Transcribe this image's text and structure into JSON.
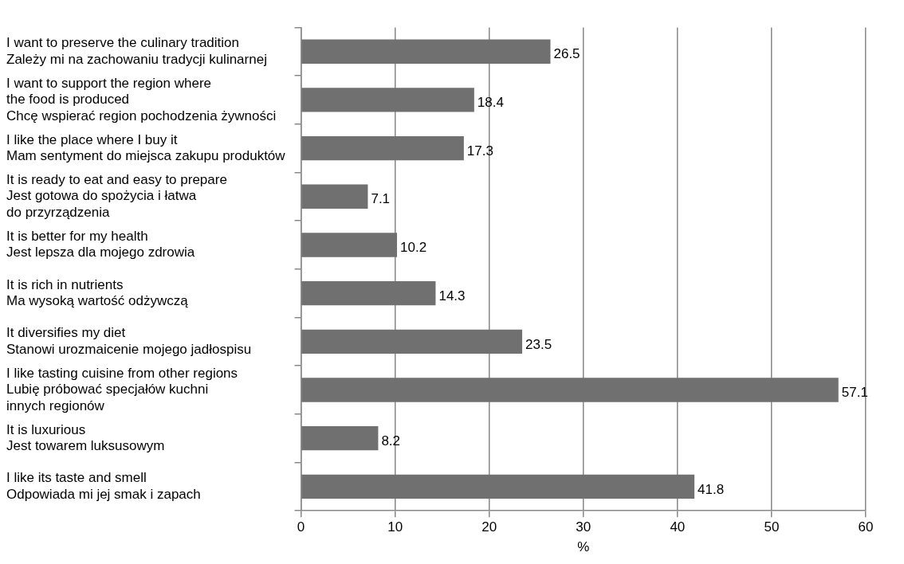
{
  "chart_data": {
    "type": "bar",
    "orientation": "horizontal",
    "xlabel": "%",
    "categories": [
      "I want to preserve the culinary tradition\nZależy mi na zachowaniu tradycji kulinarnej",
      "I want to support the region where\nthe food is produced\nChcę wspierać region pochodzenia żywności",
      "I like the place where I buy it\nMam sentyment do miejsca zakupu produktów",
      "It is ready to eat and easy to prepare\nJest gotowa do spożycia i łatwa\ndo przyrządzenia",
      "It is better for my health\nJest lepsza dla mojego zdrowia",
      "It is rich in nutrients\nMa wysoką wartość odżywczą",
      "It diversifies my diet\nStanowi urozmaicenie mojego jadłospisu",
      "I like tasting cuisine from other regions\nLubię próbować specjałów kuchni\ninnych regionów",
      "It is luxurious\nJest towarem luksusowym",
      "I like its taste and smell\nOdpowiada mi jej smak i zapach"
    ],
    "values": [
      26.5,
      18.4,
      17.3,
      7.1,
      10.2,
      14.3,
      23.5,
      57.1,
      8.2,
      41.8
    ],
    "color": "#707070",
    "xlim": [
      0,
      60
    ],
    "xticks": [
      0,
      10,
      20,
      30,
      40,
      50,
      60
    ],
    "grid": "x",
    "data_labels": true,
    "legend": false
  }
}
